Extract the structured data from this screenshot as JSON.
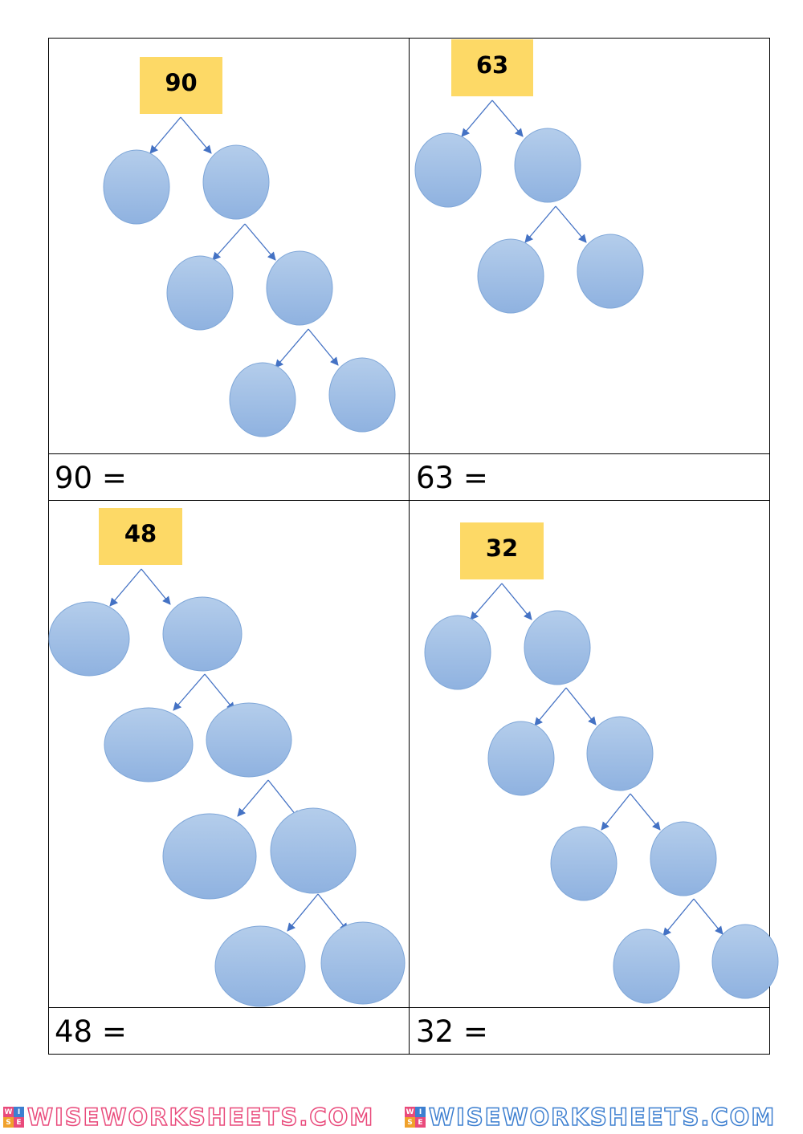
{
  "worksheet": {
    "trees": [
      {
        "id": "tree-90",
        "number": "90",
        "equation": "90 ="
      },
      {
        "id": "tree-63",
        "number": "63",
        "equation": "63 ="
      },
      {
        "id": "tree-48",
        "number": "48",
        "equation": "48 ="
      },
      {
        "id": "tree-32",
        "number": "32",
        "equation": "32 ="
      }
    ]
  },
  "footer": {
    "brand": "WISEWORKSHEETS.COM",
    "logo_letters": [
      "W",
      "I",
      "S",
      "E"
    ]
  },
  "colors": {
    "number_box": "#fdd966",
    "node_fill_top": "#b4cdeb",
    "node_fill_bottom": "#8fb2e0",
    "node_stroke": "#7ea6d8",
    "arrow": "#4472c4",
    "grid_line": "#000000"
  }
}
